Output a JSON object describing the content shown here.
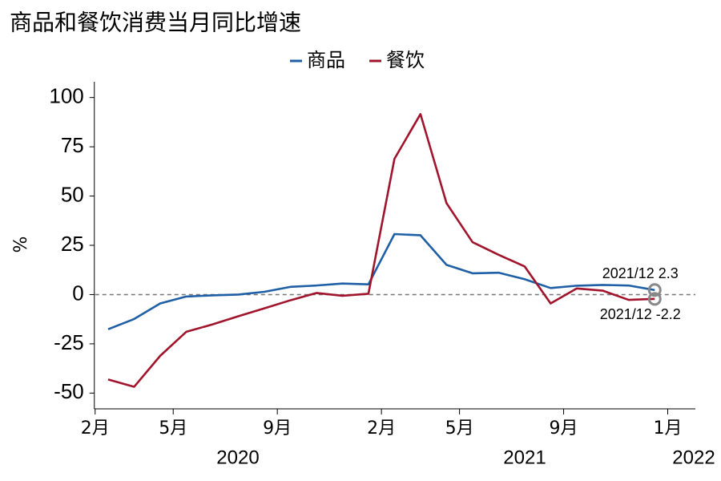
{
  "chart_data": {
    "type": "line",
    "title": "商品和餐饮消费当月同比增速",
    "y_label": "%",
    "categories": [
      "2月",
      null,
      null,
      "5月",
      null,
      null,
      null,
      "9月",
      null,
      null,
      null,
      "2月",
      null,
      null,
      "5月",
      null,
      null,
      null,
      "9月",
      null,
      null,
      null,
      "1月"
    ],
    "year_labels": [
      "2020",
      "2021",
      "2022"
    ],
    "series": [
      {
        "name": "商品",
        "color": "#1f5fa6",
        "values": [
          -17.6,
          -12.4,
          -4.5,
          -1.0,
          -0.4,
          0.0,
          1.4,
          3.9,
          4.6,
          5.6,
          5.2,
          30.7,
          30.1,
          15.1,
          10.8,
          11.1,
          7.8,
          3.3,
          4.5,
          4.9,
          4.6,
          2.3,
          null
        ]
      },
      {
        "name": "餐饮",
        "color": "#a0142c",
        "values": [
          -43.1,
          -46.8,
          -31.1,
          -18.9,
          -15.2,
          -11.0,
          -7.0,
          -2.9,
          0.8,
          -0.6,
          0.4,
          68.9,
          91.6,
          46.4,
          26.6,
          20.2,
          14.3,
          -4.5,
          3.1,
          2.0,
          -2.7,
          -2.2,
          null
        ]
      }
    ],
    "annotations": [
      "2021/12 2.3",
      "2021/12 -2.2"
    ],
    "ylim": [
      -58,
      108
    ],
    "yticks": [
      -50,
      -25,
      0,
      25,
      50,
      75,
      100
    ],
    "legend": "top"
  }
}
